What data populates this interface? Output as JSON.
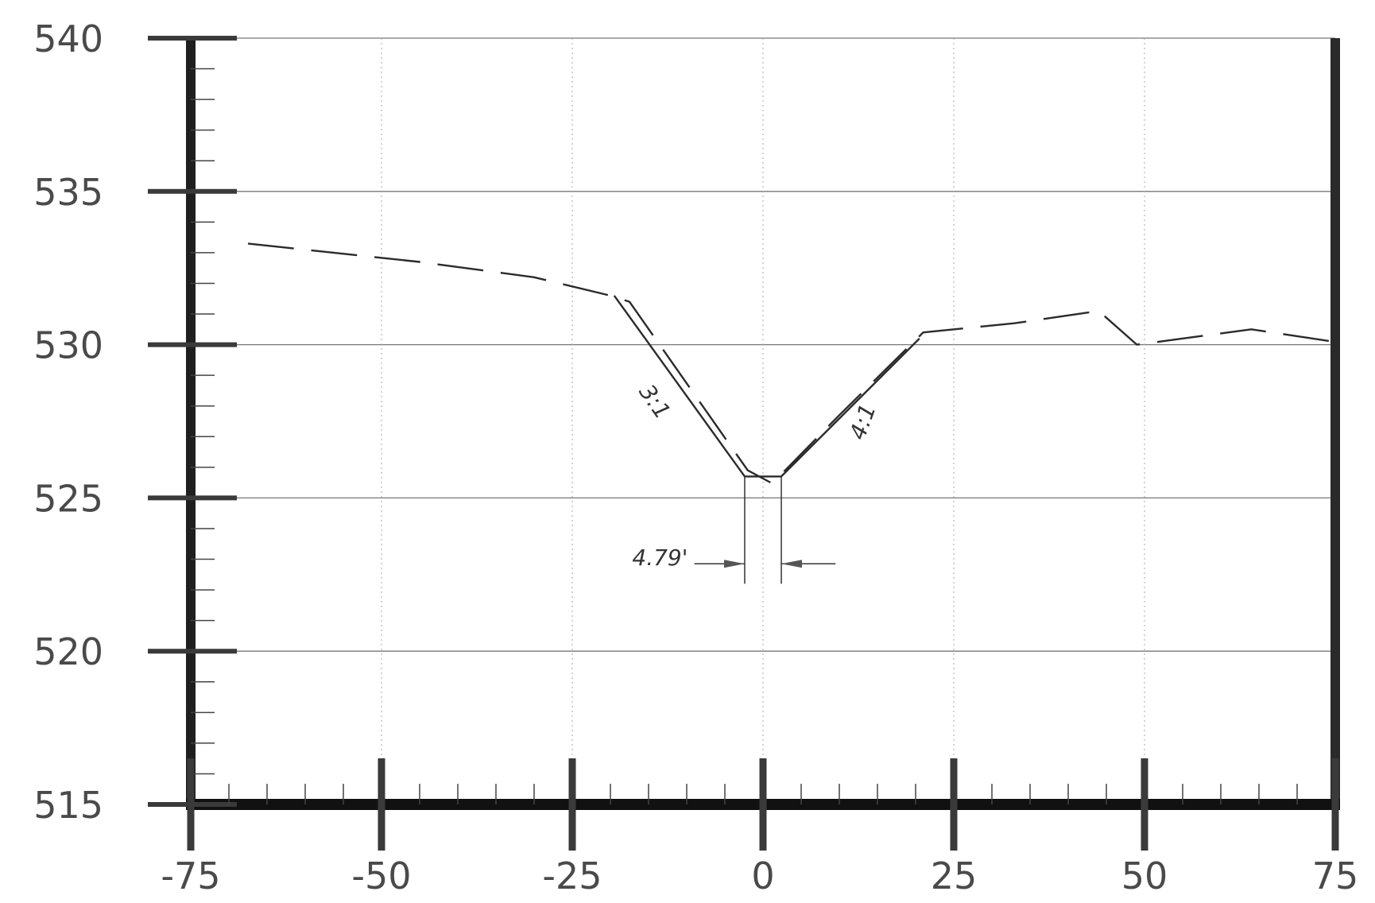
{
  "chart_data": {
    "type": "line",
    "title": "",
    "xlabel": "",
    "ylabel": "",
    "xlim": [
      -75,
      75
    ],
    "ylim": [
      515,
      540
    ],
    "x_ticks": [
      "-75",
      "-50",
      "-25",
      "0",
      "25",
      "50",
      "75"
    ],
    "y_ticks": [
      "515",
      "520",
      "525",
      "530",
      "535",
      "540"
    ],
    "grid": true,
    "series": [
      {
        "style": "dashed",
        "points": [
          [
            -67.5,
            533.3
          ],
          [
            -45,
            532.7
          ],
          [
            -30,
            532.2
          ],
          [
            -20,
            531.6
          ],
          [
            -17.5,
            531.4
          ],
          [
            -2,
            525.9
          ],
          [
            1,
            525.5
          ],
          [
            2.5,
            525.8
          ],
          [
            10,
            527.7
          ],
          [
            21,
            530.4
          ],
          [
            33,
            530.7
          ],
          [
            44,
            531.1
          ],
          [
            49,
            530.0
          ],
          [
            64,
            530.5
          ],
          [
            74.7,
            530.1
          ]
        ]
      },
      {
        "style": "solid",
        "points": [
          [
            -19.5,
            531.6
          ],
          [
            -2.4,
            525.7
          ],
          [
            2.4,
            525.7
          ],
          [
            20.5,
            530.2
          ]
        ]
      }
    ],
    "annotations": [
      {
        "text": "3:1",
        "x": -15,
        "y": 528.0
      },
      {
        "text": "4:1",
        "x": 14,
        "y": 527.4
      },
      {
        "text": "4.79'",
        "x": -13.5,
        "y": 522.8
      }
    ]
  }
}
